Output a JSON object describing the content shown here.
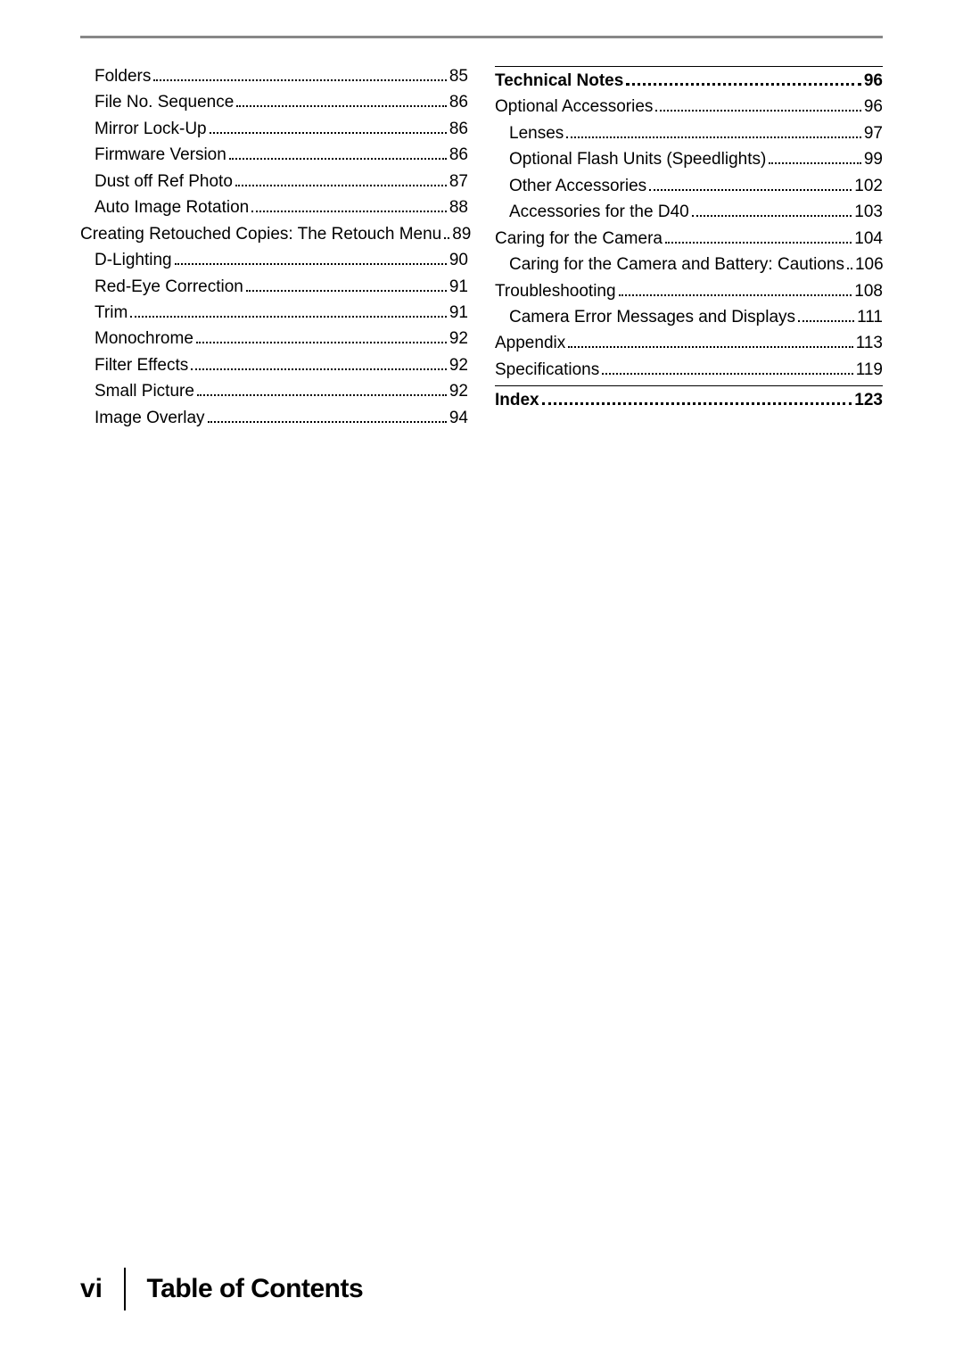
{
  "left_column": [
    {
      "label": "Folders",
      "page": "85",
      "indent": 1
    },
    {
      "label": "File No. Sequence",
      "page": "86",
      "indent": 1
    },
    {
      "label": "Mirror Lock-Up",
      "page": "86",
      "indent": 1
    },
    {
      "label": "Firmware Version",
      "page": "86",
      "indent": 1
    },
    {
      "label": "Dust off Ref Photo",
      "page": "87",
      "indent": 1
    },
    {
      "label": "Auto Image Rotation",
      "page": "88",
      "indent": 1
    },
    {
      "label": "Creating Retouched Copies: The Retouch Menu",
      "page": "89",
      "indent": 0,
      "bold": false
    },
    {
      "label": "D-Lighting",
      "page": "90",
      "indent": 1
    },
    {
      "label": "Red-Eye Correction",
      "page": "91",
      "indent": 1
    },
    {
      "label": "Trim",
      "page": "91",
      "indent": 1
    },
    {
      "label": "Monochrome",
      "page": "92",
      "indent": 1
    },
    {
      "label": "Filter Effects",
      "page": "92",
      "indent": 1
    },
    {
      "label": "Small Picture",
      "page": "92",
      "indent": 1
    },
    {
      "label": "Image Overlay",
      "page": "94",
      "indent": 1
    }
  ],
  "right_sections": [
    {
      "head": {
        "label": "Technical Notes",
        "page": "96"
      },
      "items": [
        {
          "label": "Optional Accessories",
          "page": "96",
          "indent": 0
        },
        {
          "label": "Lenses",
          "page": "97",
          "indent": 1
        },
        {
          "label": "Optional Flash Units (Speedlights)",
          "page": "99",
          "indent": 1
        },
        {
          "label": "Other Accessories",
          "page": "102",
          "indent": 1
        },
        {
          "label": "Accessories for the D40",
          "page": "103",
          "indent": 1
        },
        {
          "label": "Caring for the Camera",
          "page": "104",
          "indent": 0
        },
        {
          "label": "Caring for the Camera and Battery: Cautions",
          "page": "106",
          "indent": 1
        },
        {
          "label": "Troubleshooting",
          "page": "108",
          "indent": 0
        },
        {
          "label": "Camera Error Messages and Displays",
          "page": "111",
          "indent": 1
        },
        {
          "label": "Appendix",
          "page": "113",
          "indent": 0
        },
        {
          "label": "Specifications",
          "page": "119",
          "indent": 0
        }
      ]
    },
    {
      "head": {
        "label": "Index",
        "page": "123"
      },
      "items": []
    }
  ],
  "footer": {
    "page_roman": "vi",
    "title": "Table of Contents"
  }
}
